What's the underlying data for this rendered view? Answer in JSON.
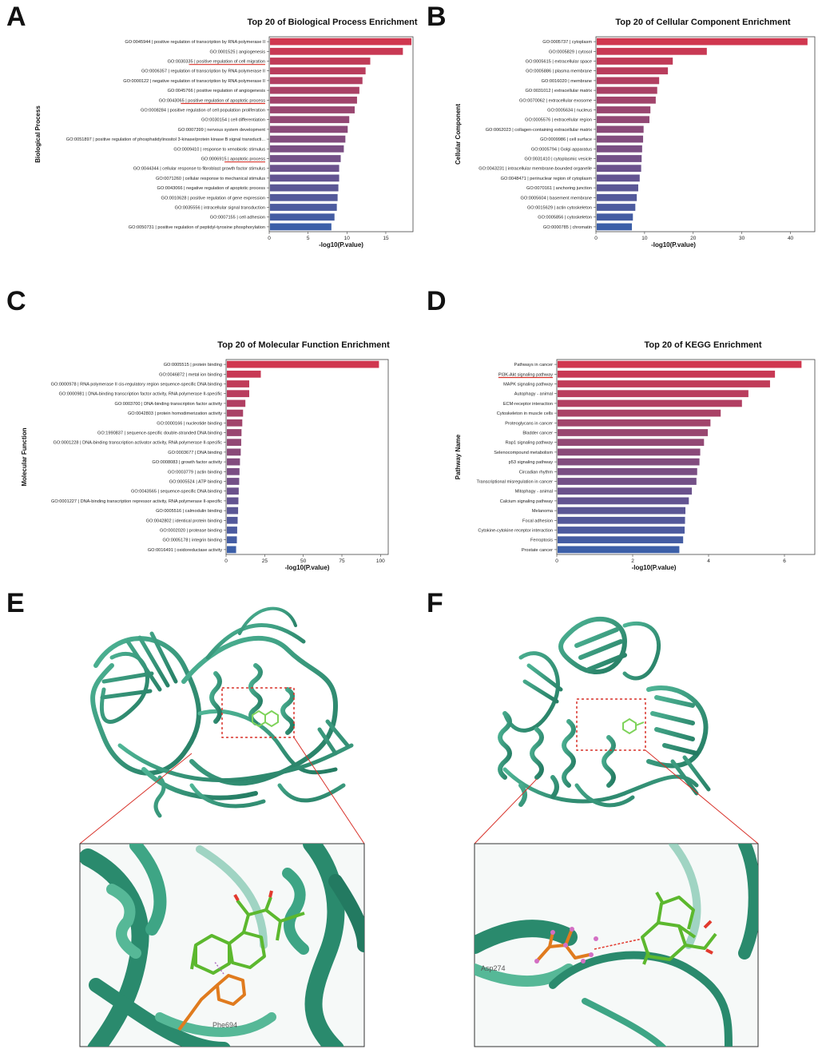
{
  "panels": {
    "A": "A",
    "B": "B",
    "C": "C",
    "D": "D",
    "E": "E",
    "F": "F"
  },
  "chart_data": [
    {
      "id": "bp",
      "type": "bar",
      "orientation": "horizontal",
      "title": "Top 20 of Biological Process Enrichment",
      "xlabel": "-log10(P.value)",
      "ylabel": "Biological Process",
      "xlim": [
        0,
        18.5
      ],
      "xticks": [
        0,
        5,
        10,
        15
      ],
      "grid": false,
      "colors": {
        "high": "#d0374f",
        "low": "#3c5fa8"
      },
      "categories": [
        "GO:0045944 | positive regulation of transcription by RNA polymerase II",
        "GO:0001525 | angiogenesis",
        "GO:0030335 | positive regulation of cell migration",
        "GO:0006357 | regulation of transcription by RNA polymerase II",
        "GO:0000122 | negative regulation of transcription by RNA polymerase II",
        "GO:0045766 | positive regulation of angiogenesis",
        "GO:0043065 | positive regulation of apoptotic process",
        "GO:0008284 | positive regulation of cell population proliferation",
        "GO:0030154 | cell differentiation",
        "GO:0007399 | nervous system development",
        "GO:0051897 | positive regulation of phosphatidylinositol 3-kinase/protein kinase B signal transducti...",
        "GO:0009410 | response to xenobiotic stimulus",
        "GO:0006915 | apoptotic process",
        "GO:0044344 | cellular response to fibroblast growth factor stimulus",
        "GO:0071260 | cellular response to mechanical stimulus",
        "GO:0043066 | negative regulation of apoptotic process",
        "GO:0010628 | positive regulation of gene expression",
        "GO:0035556 | intracellular signal transduction",
        "GO:0007155 | cell adhesion",
        "GO:0050731 | positive regulation of peptidyl-tyrosine phosphorylation"
      ],
      "values": [
        18.3,
        17.2,
        13.0,
        12.4,
        12.0,
        11.6,
        11.3,
        11.0,
        10.3,
        10.1,
        9.8,
        9.6,
        9.2,
        9.0,
        9.0,
        8.9,
        8.8,
        8.7,
        8.4,
        8.0
      ],
      "underlined": [
        2,
        6,
        12
      ]
    },
    {
      "id": "cc",
      "type": "bar",
      "orientation": "horizontal",
      "title": "Top 20 of Cellular Component Enrichment",
      "xlabel": "-log10(P.value)",
      "ylabel": "Cellular Component",
      "xlim": [
        0,
        45
      ],
      "xticks": [
        0,
        10,
        20,
        30,
        40
      ],
      "grid": false,
      "colors": {
        "high": "#d0374f",
        "low": "#3c5fa8"
      },
      "categories": [
        "GO:0005737 | cytoplasm",
        "GO:0005829 | cytosol",
        "GO:0005615 | extracellular space",
        "GO:0005886 | plasma membrane",
        "GO:0016020 | membrane",
        "GO:0031012 | extracellular matrix",
        "GO:0070062 | extracellular exosome",
        "GO:0005634 | nucleus",
        "GO:0005576 | extracellular region",
        "GO:0062023 | collagen-containing extracellular matrix",
        "GO:0009986 | cell surface",
        "GO:0005794 | Golgi apparatus",
        "GO:0031410 | cytoplasmic vesicle",
        "GO:0043231 | intracellular membrane-bounded organelle",
        "GO:0048471 | perinuclear region of cytoplasm",
        "GO:0070161 | anchoring junction",
        "GO:0005604 | basement membrane",
        "GO:0015629 | actin cytoskeleton",
        "GO:0005856 | cytoskeleton",
        "GO:0000785 | chromatin"
      ],
      "values": [
        43.5,
        22.8,
        15.8,
        14.8,
        13.0,
        12.6,
        12.3,
        11.2,
        11.0,
        9.8,
        9.7,
        9.5,
        9.4,
        9.3,
        9.0,
        8.7,
        8.4,
        8.1,
        7.6,
        7.4
      ],
      "underlined": []
    },
    {
      "id": "mf",
      "type": "bar",
      "orientation": "horizontal",
      "title": "Top 20 of Molecular Function Enrichment",
      "xlabel": "-log10(P.value)",
      "ylabel": "Molecular Function",
      "xlim": [
        0,
        105
      ],
      "xticks": [
        0,
        25,
        50,
        75,
        100
      ],
      "grid": false,
      "colors": {
        "high": "#d0374f",
        "low": "#3c5fa8"
      },
      "categories": [
        "GO:0005515 | protein binding",
        "GO:0046872 | metal ion binding",
        "GO:0000978 | RNA polymerase II cis-regulatory region sequence-specific DNA binding",
        "GO:0000981 | DNA-binding transcription factor activity, RNA polymerase II-specific",
        "GO:0003700 | DNA-binding transcription factor activity",
        "GO:0042803 | protein homodimerization activity",
        "GO:0000166 | nucleotide binding",
        "GO:1990837 | sequence-specific double-stranded DNA binding",
        "GO:0001228 | DNA-binding transcription activator activity, RNA polymerase II-specific",
        "GO:0003677 | DNA binding",
        "GO:0008083 | growth factor activity",
        "GO:0003779 | actin binding",
        "GO:0005524 | ATP binding",
        "GO:0043565 | sequence-specific DNA binding",
        "GO:0001227 | DNA-binding transcription repressor activity, RNA polymerase II-specific",
        "GO:0005516 | calmodulin binding",
        "GO:0042802 | identical protein binding",
        "GO:0002020 | protease binding",
        "GO:0005178 | integrin binding",
        "GO:0016491 | oxidoreductase activity"
      ],
      "values": [
        99,
        22.5,
        15,
        15,
        12.5,
        11,
        10.5,
        10,
        9.8,
        9.5,
        9,
        8.7,
        8.5,
        8.2,
        8,
        7.8,
        7.5,
        7.2,
        7,
        6.5
      ],
      "underlined": []
    },
    {
      "id": "kegg",
      "type": "bar",
      "orientation": "horizontal",
      "title": "Top 20 of KEGG Enrichment",
      "xlabel": "-log10(P.value)",
      "ylabel": "Pathway Name",
      "xlim": [
        0,
        6.8
      ],
      "xticks": [
        0,
        2,
        4,
        6
      ],
      "grid": false,
      "colors": {
        "high": "#d0374f",
        "low": "#3c5fa8"
      },
      "categories": [
        "Pathways in cancer",
        "PI3K-Akt signaling pathway",
        "MAPK signaling pathway",
        "Autophagy - animal",
        "ECM-receptor interaction",
        "Cytoskeleton in muscle cells",
        "Proteoglycans in cancer",
        "Bladder cancer",
        "Rap1 signaling pathway",
        "Selenocompound metabolism",
        "p53 signaling pathway",
        "Circadian rhythm",
        "Transcriptional misregulation in cancer",
        "Mitophagy - animal",
        "Calcium signaling pathway",
        "Melanoma",
        "Focal adhesion",
        "Cytokine-cytokine receptor interaction",
        "Ferroptosis",
        "Prostate cancer"
      ],
      "values": [
        6.45,
        5.75,
        5.62,
        5.05,
        4.88,
        4.32,
        4.05,
        3.98,
        3.88,
        3.78,
        3.76,
        3.7,
        3.68,
        3.56,
        3.48,
        3.39,
        3.38,
        3.37,
        3.33,
        3.23
      ],
      "underlined": [
        1
      ]
    }
  ],
  "structures": {
    "E": {
      "residue": "Phe694",
      "protein_color": "#2f9a7c",
      "ligand_color": "#5cb82e",
      "residue_color": "#e07b1e",
      "box_color": "#d8322a"
    },
    "F": {
      "residue": "Asp274",
      "protein_color": "#2f9a7c",
      "ligand_color": "#5cb82e",
      "residue_color": "#e07b1e",
      "atom_color": "#d36fc4",
      "box_color": "#d8322a"
    }
  }
}
